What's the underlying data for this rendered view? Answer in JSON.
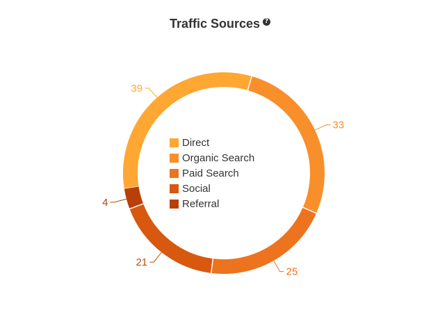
{
  "chart_data": {
    "type": "pie",
    "title": "Traffic Sources",
    "help_icon": "question-circle-icon",
    "legend_position": "center",
    "categories": [
      "Direct",
      "Organic Search",
      "Paid Search",
      "Social",
      "Referral"
    ],
    "values": [
      39,
      33,
      25,
      21,
      4
    ],
    "colors": [
      "#ffa733",
      "#f88f2a",
      "#ed731e",
      "#d85810",
      "#b84006"
    ],
    "label_colors": [
      "#ffa733",
      "#f88f2a",
      "#ed731e",
      "#c05010",
      "#b84006"
    ],
    "data_labels": [
      "39",
      "33",
      "25",
      "21",
      "4"
    ]
  }
}
